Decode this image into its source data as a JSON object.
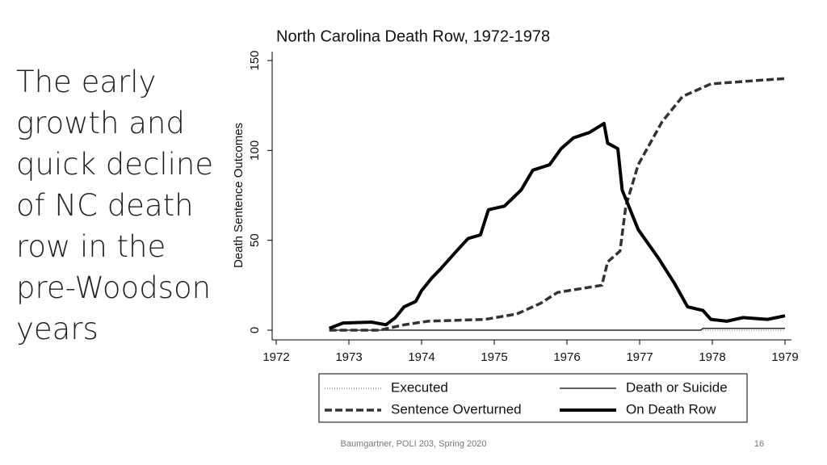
{
  "slide": {
    "heading": "The early growth and quick decline of NC death row in the pre-Woodson years",
    "footer": "Baumgartner, POLI 203, Spring 2020",
    "page_number": "16"
  },
  "chart_data": {
    "type": "line",
    "title": "North Carolina Death Row, 1972-1978",
    "y_label": "Death Sentence Outcomes",
    "xlim": [
      1972,
      1979
    ],
    "xticks": [
      1972,
      1973,
      1974,
      1975,
      1976,
      1977,
      1978,
      1979
    ],
    "ylim": [
      0,
      150
    ],
    "yticks": [
      0,
      50,
      100,
      150
    ],
    "legend": "bottom",
    "series": [
      {
        "name": "Executed",
        "color": "#555555",
        "line_style": "dotted",
        "x": [
          1977.87,
          1979
        ],
        "values": [
          0,
          0
        ]
      },
      {
        "name": "Death or Suicide",
        "color": "#000000",
        "line_style": "thin",
        "x": [
          1972.73,
          1977.84,
          1977.87,
          1979
        ],
        "values": [
          0,
          0,
          1,
          1
        ]
      },
      {
        "name": "Sentence Overturned",
        "color": "#333333",
        "line_style": "dashed",
        "x": [
          1972.73,
          1973.42,
          1973.76,
          1974.09,
          1974.87,
          1975.31,
          1975.64,
          1975.87,
          1976.48,
          1976.56,
          1976.73,
          1976.81,
          1976.98,
          1977.31,
          1977.59,
          1977.98,
          1978.64,
          1979
        ],
        "values": [
          0,
          0,
          3,
          5,
          6,
          9,
          15,
          21,
          25,
          38,
          44,
          69,
          92,
          116,
          130,
          137,
          139,
          140
        ]
      },
      {
        "name": "On Death Row",
        "color": "#000000",
        "line_style": "thick",
        "x": [
          1972.73,
          1972.92,
          1973.31,
          1973.51,
          1973.64,
          1973.76,
          1973.92,
          1974.0,
          1974.14,
          1974.26,
          1974.48,
          1974.64,
          1974.81,
          1974.92,
          1975.14,
          1975.37,
          1975.53,
          1975.76,
          1975.92,
          1976.09,
          1976.31,
          1976.51,
          1976.56,
          1976.7,
          1976.76,
          1976.98,
          1977.26,
          1977.48,
          1977.66,
          1977.87,
          1977.98,
          1978.2,
          1978.42,
          1978.76,
          1979
        ],
        "values": [
          1,
          4,
          4.5,
          3,
          7,
          13,
          16,
          22,
          29,
          34,
          44,
          51,
          53,
          67,
          69,
          78,
          89,
          92,
          101,
          107,
          110,
          115,
          104,
          101,
          78,
          56,
          40,
          26,
          13,
          11,
          6,
          5,
          7,
          6,
          8
        ]
      }
    ]
  }
}
